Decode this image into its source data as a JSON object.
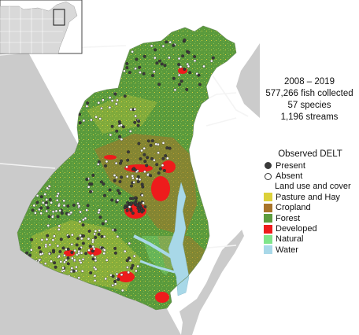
{
  "stats": {
    "years": "2008 – 2019",
    "fish_collected": "577,266  fish collected",
    "species": "57 species",
    "streams": "1,196  streams"
  },
  "legend": {
    "title": "Observed DELT",
    "present": "Present",
    "absent": "Absent",
    "landuse_title": "Land use and cover",
    "classes": [
      {
        "label": "Pasture and Hay",
        "color": "#dcd13a"
      },
      {
        "label": "Cropland",
        "color": "#a8742a"
      },
      {
        "label": "Forest",
        "color": "#5c9c3e"
      },
      {
        "label": "Developed",
        "color": "#ee1c1c"
      },
      {
        "label": "Natural",
        "color": "#7fe58a"
      },
      {
        "label": "Water",
        "color": "#a8d8e8"
      }
    ]
  },
  "colors": {
    "background_land": "#cbcbcb",
    "ocean": "#ffffff",
    "state_lines": "#f2f2f2",
    "present_marker": "#3a3a3a",
    "absent_marker": "#ffffff"
  }
}
